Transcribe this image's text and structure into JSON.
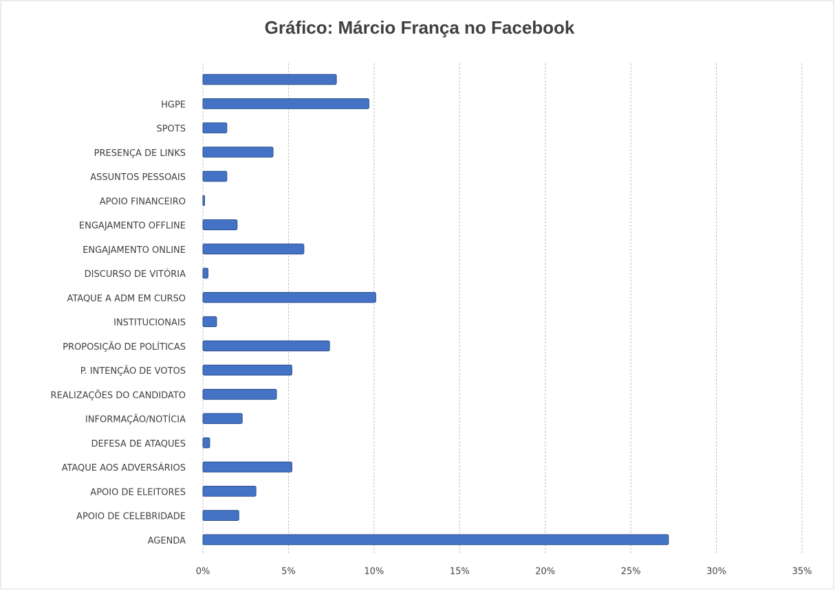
{
  "chart_data": {
    "type": "barh",
    "title": "Gráfico: Márcio França no Facebook",
    "categories": [
      null,
      "HGPE",
      "SPOTS",
      "PRESENÇA DE LINKS",
      "ASSUNTOS PESSOAIS",
      "APOIO FINANCEIRO",
      "ENGAJAMENTO OFFLINE",
      "ENGAJAMENTO ONLINE",
      "DISCURSO DE VITÓRIA",
      "ATAQUE A ADM EM CURSO",
      "INSTITUCIONAIS",
      "PROPOSIÇÃO DE POLÍTICAS",
      "P. INTENÇÃO DE VOTOS",
      "REALIZAÇÕES DO CANDIDATO",
      "INFORMAÇÃO/NOTÍCIA",
      "DEFESA DE ATAQUES",
      "ATAQUE AOS ADVERSÁRIOS",
      "APOIO DE ELEITORES",
      "APOIO DE CELEBRIDADE",
      "AGENDA"
    ],
    "values": [
      7.8,
      9.7,
      1.4,
      4.1,
      1.4,
      0.1,
      2.0,
      5.9,
      0.3,
      10.1,
      0.8,
      7.4,
      5.2,
      4.3,
      2.3,
      0.4,
      5.2,
      3.1,
      2.1,
      27.2
    ],
    "color": "#4472c4",
    "xlim": [
      0,
      35
    ],
    "xticks": [
      {
        "value": 0,
        "label": "0%"
      },
      {
        "value": 5,
        "label": "5%"
      },
      {
        "value": 10,
        "label": "10%"
      },
      {
        "value": 15,
        "label": "15%"
      },
      {
        "value": 20,
        "label": "20%"
      },
      {
        "value": 25,
        "label": "25%"
      },
      {
        "value": 30,
        "label": "30%"
      },
      {
        "value": 35,
        "label": "35%"
      }
    ],
    "grid": true
  }
}
